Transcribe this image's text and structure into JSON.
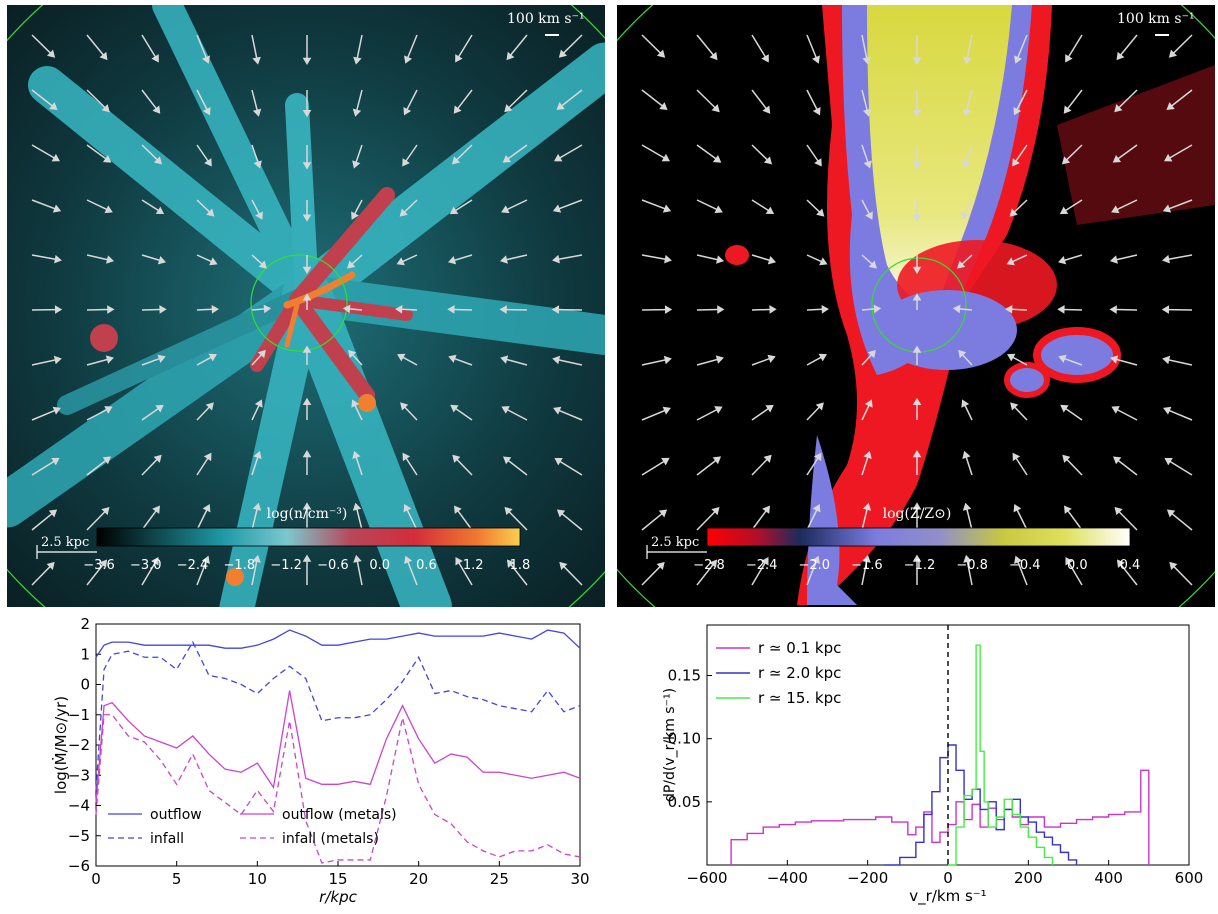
{
  "map_left": {
    "scale_label": "100 km s⁻¹",
    "bar_label": "2.5 kpc",
    "colorbar_title": "log(n/cm⁻³)",
    "colorbar_ticks": [
      "−3.6",
      "−3.0",
      "−2.4",
      "−1.8",
      "−1.2",
      "−0.6",
      "0.0",
      "0.6",
      "1.2",
      "1.8"
    ]
  },
  "map_right": {
    "scale_label": "100 km s⁻¹",
    "bar_label": "2.5 kpc",
    "colorbar_title": "log(Z/Z⊙)",
    "colorbar_ticks": [
      "−2.8",
      "−2.4",
      "−2.0",
      "−1.6",
      "−1.2",
      "−0.8",
      "−0.4",
      "0.0",
      "0.4"
    ]
  },
  "chart_data": [
    {
      "type": "line",
      "xlabel": "r/kpc",
      "ylabel": "log(Ṁ/M⊙/yr)",
      "xlim": [
        0,
        30
      ],
      "ylim": [
        -6,
        2
      ],
      "xticks": [
        "0",
        "5",
        "10",
        "15",
        "20",
        "25",
        "30"
      ],
      "yticks": [
        "2",
        "1",
        "0",
        "−1",
        "−2",
        "−3",
        "−4",
        "−5",
        "−6"
      ],
      "legend": "lower-left",
      "series": [
        {
          "name": "outflow",
          "color": "#4444dd",
          "dash": "solid",
          "x": [
            0,
            0.5,
            1,
            2,
            3,
            4,
            5,
            6,
            7,
            8,
            9,
            10,
            11,
            12,
            13,
            14,
            15,
            16,
            17,
            18,
            19,
            20,
            21,
            22,
            23,
            24,
            25,
            26,
            27,
            28,
            29,
            30
          ],
          "y": [
            0.9,
            1.3,
            1.4,
            1.4,
            1.3,
            1.3,
            1.3,
            1.3,
            1.3,
            1.2,
            1.2,
            1.3,
            1.5,
            1.8,
            1.6,
            1.3,
            1.3,
            1.4,
            1.5,
            1.5,
            1.6,
            1.7,
            1.6,
            1.6,
            1.6,
            1.6,
            1.7,
            1.6,
            1.5,
            1.8,
            1.7,
            1.2
          ]
        },
        {
          "name": "infall",
          "color": "#4444dd",
          "dash": "dashed",
          "x": [
            0,
            0.5,
            1,
            2,
            3,
            4,
            5,
            6,
            7,
            8,
            9,
            10,
            11,
            12,
            13,
            14,
            15,
            16,
            17,
            18,
            19,
            20,
            21,
            22,
            23,
            24,
            25,
            26,
            27,
            28,
            29,
            30
          ],
          "y": [
            -3.5,
            0.5,
            1.0,
            1.1,
            0.9,
            0.9,
            0.5,
            1.4,
            0.3,
            0.2,
            0.0,
            -0.3,
            0.2,
            0.6,
            0.2,
            -1.2,
            -1.1,
            -1.1,
            -1.0,
            -0.5,
            0.1,
            0.9,
            -0.3,
            -0.2,
            -0.4,
            -0.5,
            -0.7,
            -0.8,
            -0.9,
            -0.2,
            -0.9,
            -0.7
          ]
        },
        {
          "name": "outflow (metals)",
          "color": "#cc44cc",
          "dash": "solid",
          "x": [
            0,
            0.5,
            1,
            2,
            3,
            4,
            5,
            6,
            7,
            8,
            9,
            10,
            11,
            12,
            13,
            14,
            15,
            16,
            17,
            18,
            19,
            20,
            21,
            22,
            23,
            24,
            25,
            26,
            27,
            28,
            29,
            30
          ],
          "y": [
            -3.9,
            -0.7,
            -0.6,
            -1.2,
            -1.7,
            -1.9,
            -2.1,
            -1.7,
            -2.3,
            -2.8,
            -2.9,
            -2.6,
            -3.4,
            -0.2,
            -3.1,
            -3.3,
            -3.3,
            -3.2,
            -3.3,
            -1.8,
            -0.7,
            -1.8,
            -2.6,
            -2.3,
            -2.4,
            -2.9,
            -2.9,
            -3.0,
            -3.1,
            -3.0,
            -2.9,
            -3.1
          ]
        },
        {
          "name": "infall (metals)",
          "color": "#cc44cc",
          "dash": "dashed",
          "x": [
            0,
            0.5,
            1,
            2,
            3,
            4,
            5,
            6,
            7,
            8,
            9,
            10,
            11,
            12,
            13,
            14,
            15,
            16,
            17,
            18,
            19,
            20,
            21,
            22,
            23,
            24,
            25,
            26,
            27,
            28,
            29,
            30
          ],
          "y": [
            -4.3,
            -1.0,
            -1.0,
            -1.7,
            -1.9,
            -2.5,
            -3.3,
            -2.3,
            -3.5,
            -3.9,
            -4.3,
            -3.5,
            -4.2,
            -1.2,
            -4.5,
            -5.9,
            -5.8,
            -5.8,
            -5.8,
            -3.7,
            -1.1,
            -3.3,
            -4.3,
            -4.6,
            -5.2,
            -5.5,
            -5.7,
            -5.5,
            -5.5,
            -5.3,
            -5.6,
            -5.7
          ]
        }
      ]
    },
    {
      "type": "line",
      "xlabel": "v_r/km s⁻¹",
      "ylabel": "dP/d(v_r/km s⁻¹)",
      "xlim": [
        -600,
        600
      ],
      "ylim": [
        0,
        0.19
      ],
      "xticks": [
        "−600",
        "−400",
        "−200",
        "0",
        "200",
        "400",
        "600"
      ],
      "yticks": [
        "0.15",
        "0.10",
        "0.05"
      ],
      "legend": "top-left",
      "vline_x": 0,
      "series": [
        {
          "name": "r ≃ 0.1 kpc",
          "color": "#cc33cc",
          "x": [
            -540,
            -500,
            -460,
            -420,
            -380,
            -340,
            -300,
            -260,
            -220,
            -180,
            -140,
            -100,
            -80,
            -60,
            -40,
            -20,
            0,
            20,
            40,
            60,
            80,
            100,
            120,
            140,
            160,
            180,
            200,
            240,
            280,
            320,
            360,
            400,
            440,
            480,
            500
          ],
          "y": [
            0.02,
            0.025,
            0.03,
            0.032,
            0.034,
            0.035,
            0.035,
            0.036,
            0.036,
            0.038,
            0.034,
            0.024,
            0.03,
            0.042,
            0.018,
            0.026,
            0.032,
            0.05,
            0.036,
            0.048,
            0.03,
            0.045,
            0.036,
            0.044,
            0.038,
            0.032,
            0.038,
            0.03,
            0.033,
            0.036,
            0.038,
            0.04,
            0.042,
            0.075,
            0.0
          ]
        },
        {
          "name": "r ≃ 2.0 kpc",
          "color": "#3333cc",
          "x": [
            -160,
            -120,
            -80,
            -60,
            -40,
            -20,
            0,
            20,
            40,
            60,
            80,
            100,
            120,
            140,
            160,
            180,
            200,
            220,
            240,
            260,
            280,
            300,
            320
          ],
          "y": [
            0.0,
            0.006,
            0.018,
            0.04,
            0.058,
            0.085,
            0.095,
            0.075,
            0.052,
            0.06,
            0.044,
            0.05,
            0.028,
            0.044,
            0.052,
            0.038,
            0.034,
            0.026,
            0.022,
            0.016,
            0.01,
            0.004,
            0.0
          ]
        },
        {
          "name": "r ≃ 15. kpc",
          "color": "#44ee44",
          "x": [
            0,
            20,
            40,
            60,
            70,
            80,
            90,
            100,
            120,
            140,
            160,
            180,
            200,
            220,
            240,
            260
          ],
          "y": [
            0.0,
            0.03,
            0.055,
            0.06,
            0.174,
            0.09,
            0.05,
            0.03,
            0.038,
            0.052,
            0.04,
            0.03,
            0.022,
            0.014,
            0.006,
            0.0
          ]
        }
      ]
    }
  ]
}
